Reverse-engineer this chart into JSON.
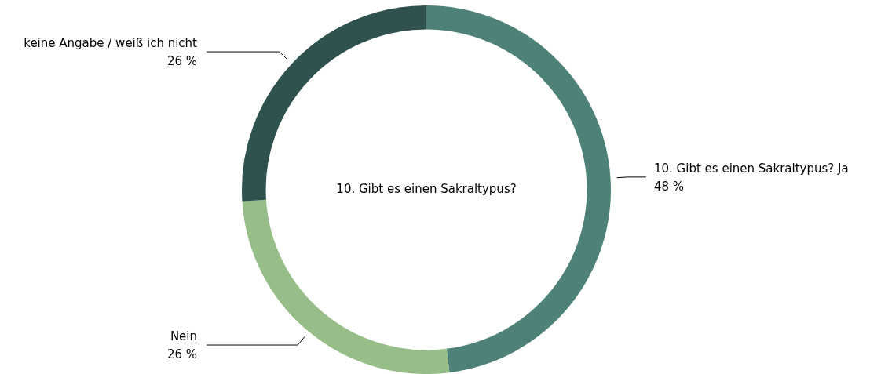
{
  "chart_data": {
    "type": "donut",
    "title": "10. Gibt es einen Sakraltypus?",
    "categories": [
      "10. Gibt es einen Sakraltypus? Ja",
      "Nein",
      "keine Angabe / weiß ich nicht"
    ],
    "values": [
      48,
      26,
      26
    ],
    "colors": [
      "#4e8278",
      "#97bd88",
      "#2f524f"
    ],
    "value_labels": [
      "48 %",
      "26 %",
      "26 %"
    ],
    "legend": false
  }
}
